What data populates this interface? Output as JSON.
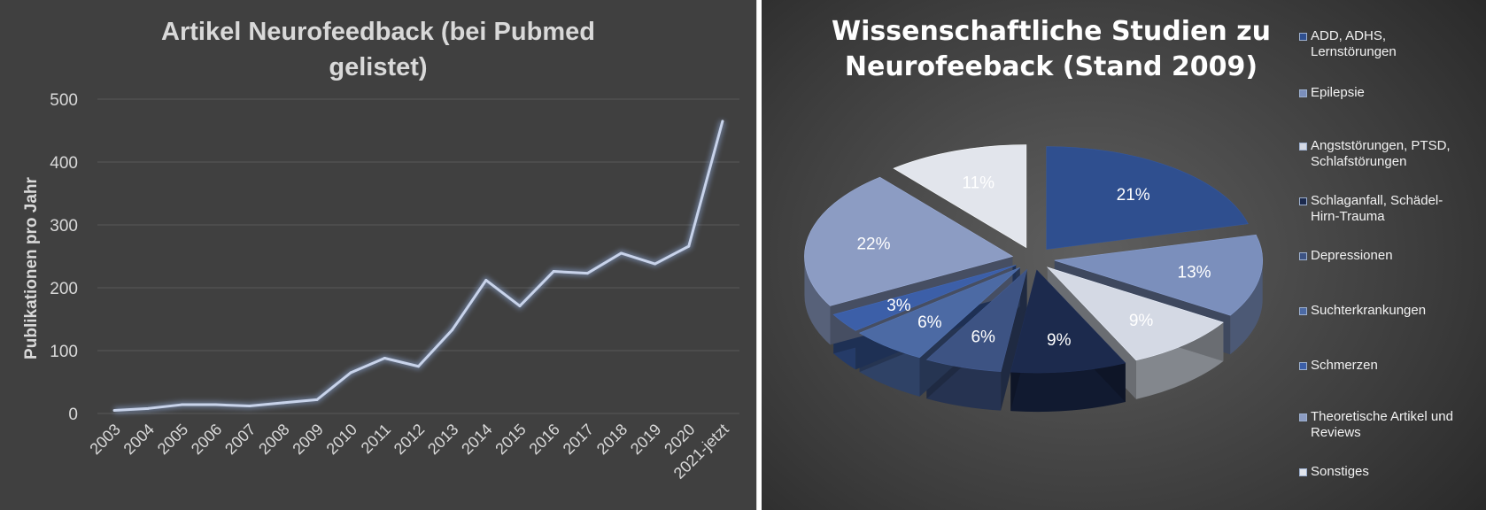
{
  "left_chart": {
    "title_line1": "Artikel Neurofeedback (bei Pubmed",
    "title_line2": "gelistet)",
    "ylabel": "Publikationen pro Jahr",
    "y_ticks": [
      "0",
      "100",
      "200",
      "300",
      "400",
      "500"
    ]
  },
  "right_chart": {
    "title_line1": "Wissenschaftliche Studien zu",
    "title_line2": "Neurofeeback (Stand 2009)"
  },
  "colors": {
    "left_bg": "#404040",
    "line": "#c8d3ea",
    "text": "#d9d9d9",
    "gridline": "#595959"
  },
  "chart_data": [
    {
      "type": "line",
      "title": "Artikel Neurofeedback (bei Pubmed gelistet)",
      "xlabel": "",
      "ylabel": "Publikationen pro Jahr",
      "ylim": [
        0,
        500
      ],
      "grid": true,
      "categories": [
        "2003",
        "2004",
        "2005",
        "2006",
        "2007",
        "2008",
        "2009",
        "2010",
        "2011",
        "2012",
        "2013",
        "2014",
        "2015",
        "2016",
        "2017",
        "2018",
        "2019",
        "2020",
        "2021-jetzt"
      ],
      "values": [
        5,
        8,
        14,
        14,
        12,
        17,
        22,
        65,
        88,
        75,
        133,
        212,
        171,
        226,
        223,
        255,
        238,
        266,
        465
      ]
    },
    {
      "type": "pie",
      "title": "Wissenschaftliche Studien zu Neurofeeback (Stand 2009)",
      "legend": "right",
      "slices": [
        {
          "label": "ADD, ADHS, Lernstörungen",
          "value": 21,
          "display": "21%",
          "color": "#2f4f8f"
        },
        {
          "label": "Epilepsie",
          "value": 13,
          "display": "13%",
          "color": "#7b8fbc"
        },
        {
          "label": "Angststörungen, PTSD, Schlafstörungen",
          "value": 9,
          "display": "9%",
          "color": "#d4d9e4"
        },
        {
          "label": "Schlaganfall, Schädel-Hirn-Trauma",
          "value": 9,
          "display": "9%",
          "color": "#1c2a4d"
        },
        {
          "label": "Depressionen",
          "value": 6,
          "display": "6%",
          "color": "#3d5383"
        },
        {
          "label": "Suchterkrankungen",
          "value": 6,
          "display": "6%",
          "color": "#4c6aa4"
        },
        {
          "label": "Schmerzen",
          "value": 3,
          "display": "3%",
          "color": "#3c5fa8"
        },
        {
          "label": "Theoretische Artikel und Reviews",
          "value": 22,
          "display": "22%",
          "color": "#8c9cc3"
        },
        {
          "label": "Sonstiges",
          "value": 11,
          "display": "11%",
          "color": "#e2e5ec"
        }
      ]
    }
  ],
  "legend_lines": [
    [
      "ADD, ADHS,",
      "Lernstörungen"
    ],
    [
      "Epilepsie"
    ],
    [
      "Angststörungen, PTSD,",
      "Schlafstörungen"
    ],
    [
      "Schlaganfall, Schädel-",
      "Hirn-Trauma"
    ],
    [
      "Depressionen"
    ],
    [
      "Suchterkrankungen"
    ],
    [
      "Schmerzen"
    ],
    [
      "Theoretische Artikel und",
      "Reviews"
    ],
    [
      "Sonstiges"
    ]
  ]
}
